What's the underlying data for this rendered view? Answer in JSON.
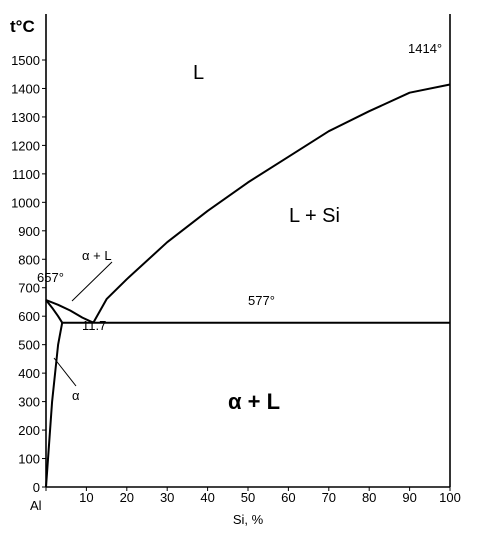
{
  "chart_data": {
    "type": "line",
    "title": "",
    "xlabel": "Si, %",
    "ylabel": "t°C",
    "xlim": [
      0,
      100
    ],
    "ylim": [
      0,
      1500
    ],
    "x_ticks": [
      {
        "value": 0,
        "label": "Al"
      },
      {
        "value": 10,
        "label": "10"
      },
      {
        "value": 20,
        "label": "20"
      },
      {
        "value": 30,
        "label": "30"
      },
      {
        "value": 40,
        "label": "40"
      },
      {
        "value": 50,
        "label": "50"
      },
      {
        "value": 60,
        "label": "60"
      },
      {
        "value": 70,
        "label": "70"
      },
      {
        "value": 80,
        "label": "80"
      },
      {
        "value": 90,
        "label": "90"
      },
      {
        "value": 100,
        "label": "100"
      }
    ],
    "y_ticks": [
      {
        "value": 0,
        "label": "0"
      },
      {
        "value": 100,
        "label": "100"
      },
      {
        "value": 200,
        "label": "200"
      },
      {
        "value": 300,
        "label": "300"
      },
      {
        "value": 400,
        "label": "400"
      },
      {
        "value": 500,
        "label": "500"
      },
      {
        "value": 600,
        "label": "600"
      },
      {
        "value": 700,
        "label": "700"
      },
      {
        "value": 800,
        "label": "800"
      },
      {
        "value": 900,
        "label": "900"
      },
      {
        "value": 1000,
        "label": "1000"
      },
      {
        "value": 1100,
        "label": "1100"
      },
      {
        "value": 1200,
        "label": "1200"
      },
      {
        "value": 1300,
        "label": "1300"
      },
      {
        "value": 1400,
        "label": "1400"
      },
      {
        "value": 1500,
        "label": "1500"
      }
    ],
    "series": [
      {
        "points": [
          [
            0,
            657
          ],
          [
            3,
            640
          ],
          [
            6,
            620
          ],
          [
            9,
            595
          ],
          [
            11.7,
            577
          ]
        ]
      },
      {
        "points": [
          [
            11.7,
            577
          ],
          [
            15,
            660
          ],
          [
            20,
            730
          ],
          [
            30,
            860
          ],
          [
            40,
            970
          ],
          [
            50,
            1070
          ],
          [
            60,
            1160
          ],
          [
            70,
            1250
          ],
          [
            80,
            1320
          ],
          [
            90,
            1385
          ],
          [
            100,
            1414
          ]
        ]
      },
      {
        "points": [
          [
            0,
            657
          ],
          [
            1.5,
            630
          ],
          [
            3,
            600
          ],
          [
            4,
            577
          ]
        ]
      },
      {
        "points": [
          [
            0,
            0
          ],
          [
            1.5,
            300
          ],
          [
            3,
            500
          ],
          [
            4,
            577
          ]
        ]
      },
      {
        "points": [
          [
            4,
            577
          ],
          [
            100,
            577
          ]
        ]
      }
    ],
    "annotations": [
      {
        "text": "1414°",
        "x": 100,
        "y": 1414
      },
      {
        "text": "657°",
        "x": 0,
        "y": 657
      },
      {
        "text": "577°",
        "x": 55,
        "y": 577
      },
      {
        "text": "11.7",
        "x": 11.7,
        "y": 577
      },
      {
        "text": "α + L",
        "x": 8,
        "y": 690
      },
      {
        "text": "α",
        "x": 6,
        "y": 320
      }
    ],
    "regions": [
      {
        "text": "L",
        "x": 37,
        "y": 1440
      },
      {
        "text": "L + Si",
        "x": 66,
        "y": 930
      },
      {
        "text": "α + L",
        "x": 53,
        "y": 310
      }
    ],
    "grid": false
  }
}
